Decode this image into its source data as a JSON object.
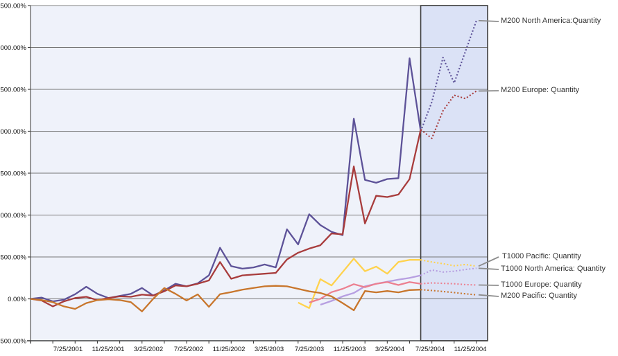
{
  "chart_data": {
    "type": "line",
    "title": "",
    "xlabel": "",
    "ylabel": "",
    "y_unit": "percent",
    "ylim": [
      -500,
      3500
    ],
    "y_tick_step": 500,
    "grid": true,
    "legend_position": "right-callouts",
    "plot_bg": "#EFF2FA",
    "forecast_band_bg": "#DBE2F6",
    "forecast_band_border": "#3F3F3F",
    "gridline_color": "#757575",
    "axis_color": "#3F3F3F",
    "leader_color": "#8C8C8C",
    "forecast_start_index": 35,
    "forecast_start_date": "6/25/2004",
    "y_tick_labels": [
      "3500.00%",
      "3000.00%",
      "2500.00%",
      "2000.00%",
      "1500.00%",
      "1000.00%",
      "500.00%",
      "0.00%",
      "-500.00%"
    ],
    "x_tick_labels": [
      "7/25/2001",
      "11/25/2001",
      "3/25/2002",
      "7/25/2002",
      "11/25/2002",
      "3/25/2003",
      "7/25/2003",
      "11/25/2003",
      "3/25/2004",
      "7/25/2004",
      "11/25/2004"
    ],
    "x": [
      "7/25/2001",
      "8/25/2001",
      "9/25/2001",
      "10/25/2001",
      "11/25/2001",
      "12/25/2001",
      "1/25/2002",
      "2/25/2002",
      "3/25/2002",
      "4/25/2002",
      "5/25/2002",
      "6/25/2002",
      "7/25/2002",
      "8/25/2002",
      "9/25/2002",
      "10/25/2002",
      "11/25/2002",
      "12/25/2002",
      "1/25/2003",
      "2/25/2003",
      "3/25/2003",
      "4/25/2003",
      "5/25/2003",
      "6/25/2003",
      "7/25/2003",
      "8/25/2003",
      "9/25/2003",
      "10/25/2003",
      "11/25/2003",
      "12/25/2003",
      "1/25/2004",
      "2/25/2004",
      "3/25/2004",
      "4/25/2004",
      "5/25/2004",
      "6/25/2004",
      "7/25/2004",
      "8/25/2004",
      "9/25/2004",
      "10/25/2004",
      "11/25/2004"
    ],
    "series": [
      {
        "label": "M200 North America:Quantity",
        "color": "#5D5298",
        "values": [
          0,
          15,
          -30,
          -10,
          55,
          145,
          60,
          10,
          35,
          60,
          130,
          40,
          100,
          180,
          150,
          185,
          280,
          610,
          390,
          360,
          375,
          410,
          375,
          830,
          650,
          1010,
          880,
          800,
          760,
          2150,
          1420,
          1385,
          1430,
          1440,
          2870,
          2000,
          2350,
          2880,
          2575,
          2950,
          3320
        ]
      },
      {
        "label": "M200 Europe: Quantity",
        "color": "#A83C3C",
        "values": [
          0,
          -20,
          -90,
          -30,
          10,
          25,
          -15,
          10,
          30,
          25,
          50,
          40,
          90,
          160,
          150,
          180,
          220,
          440,
          240,
          280,
          290,
          300,
          310,
          470,
          550,
          600,
          640,
          780,
          770,
          1580,
          900,
          1230,
          1215,
          1245,
          1430,
          2020,
          1915,
          2245,
          2430,
          2390,
          2480
        ]
      },
      {
        "label": "T1000 Pacific: Quantity",
        "color": "#FFD24D",
        "values": [
          null,
          null,
          null,
          null,
          null,
          null,
          null,
          null,
          null,
          null,
          null,
          null,
          null,
          null,
          null,
          null,
          null,
          null,
          null,
          null,
          null,
          null,
          null,
          null,
          -45,
          -110,
          235,
          160,
          320,
          480,
          330,
          385,
          300,
          440,
          465,
          465,
          440,
          420,
          395,
          410,
          390
        ]
      },
      {
        "label": "T1000 North America: Quantity",
        "color": "#B79FE1",
        "values": [
          null,
          null,
          null,
          null,
          null,
          null,
          null,
          null,
          null,
          null,
          null,
          null,
          null,
          null,
          null,
          null,
          null,
          null,
          null,
          null,
          null,
          null,
          null,
          null,
          null,
          null,
          -70,
          -25,
          30,
          70,
          150,
          180,
          205,
          230,
          250,
          280,
          345,
          320,
          330,
          350,
          365
        ]
      },
      {
        "label": "T1000 Europe: Quantity",
        "color": "#EC8090",
        "values": [
          null,
          null,
          null,
          null,
          null,
          null,
          null,
          null,
          null,
          null,
          null,
          null,
          null,
          null,
          null,
          null,
          null,
          null,
          null,
          null,
          null,
          null,
          null,
          null,
          null,
          -45,
          0,
          80,
          120,
          175,
          140,
          180,
          200,
          165,
          200,
          180,
          190,
          185,
          180,
          170,
          165
        ]
      },
      {
        "label": "M200 Pacific: Quantity",
        "color": "#C8762C",
        "values": [
          0,
          -15,
          -40,
          -90,
          -120,
          -50,
          -15,
          -5,
          -15,
          -40,
          -150,
          0,
          130,
          60,
          -20,
          54,
          -95,
          55,
          80,
          110,
          130,
          150,
          155,
          150,
          120,
          90,
          70,
          30,
          -50,
          -136,
          93,
          78,
          93,
          78,
          105,
          110,
          100,
          88,
          75,
          60,
          48
        ]
      }
    ]
  }
}
